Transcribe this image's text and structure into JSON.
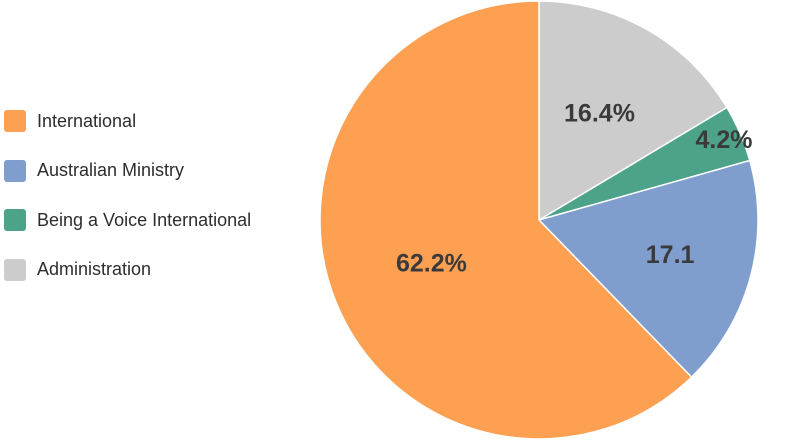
{
  "chart_data": {
    "type": "pie",
    "title": "",
    "start_angle": "12 o'clock, clockwise",
    "legend_position": "left",
    "slices": [
      {
        "name": "Administration",
        "value": 16.4,
        "label": "16.4%",
        "color": "#cccccc"
      },
      {
        "name": "Being a Voice International",
        "value": 4.2,
        "label": "4.2%",
        "color": "#4da38a"
      },
      {
        "name": "Australian Ministry",
        "value": 17.1,
        "label": "17.1",
        "color": "#7f9ece"
      },
      {
        "name": "International",
        "value": 62.2,
        "label": "62.2%",
        "color": "#fea052"
      }
    ],
    "legend": [
      {
        "name": "International",
        "color": "#fea052"
      },
      {
        "name": "Australian Ministry",
        "color": "#7f9ece"
      },
      {
        "name": "Being a Voice International",
        "color": "#4da38a"
      },
      {
        "name": "Administration",
        "color": "#cccccc"
      }
    ]
  }
}
